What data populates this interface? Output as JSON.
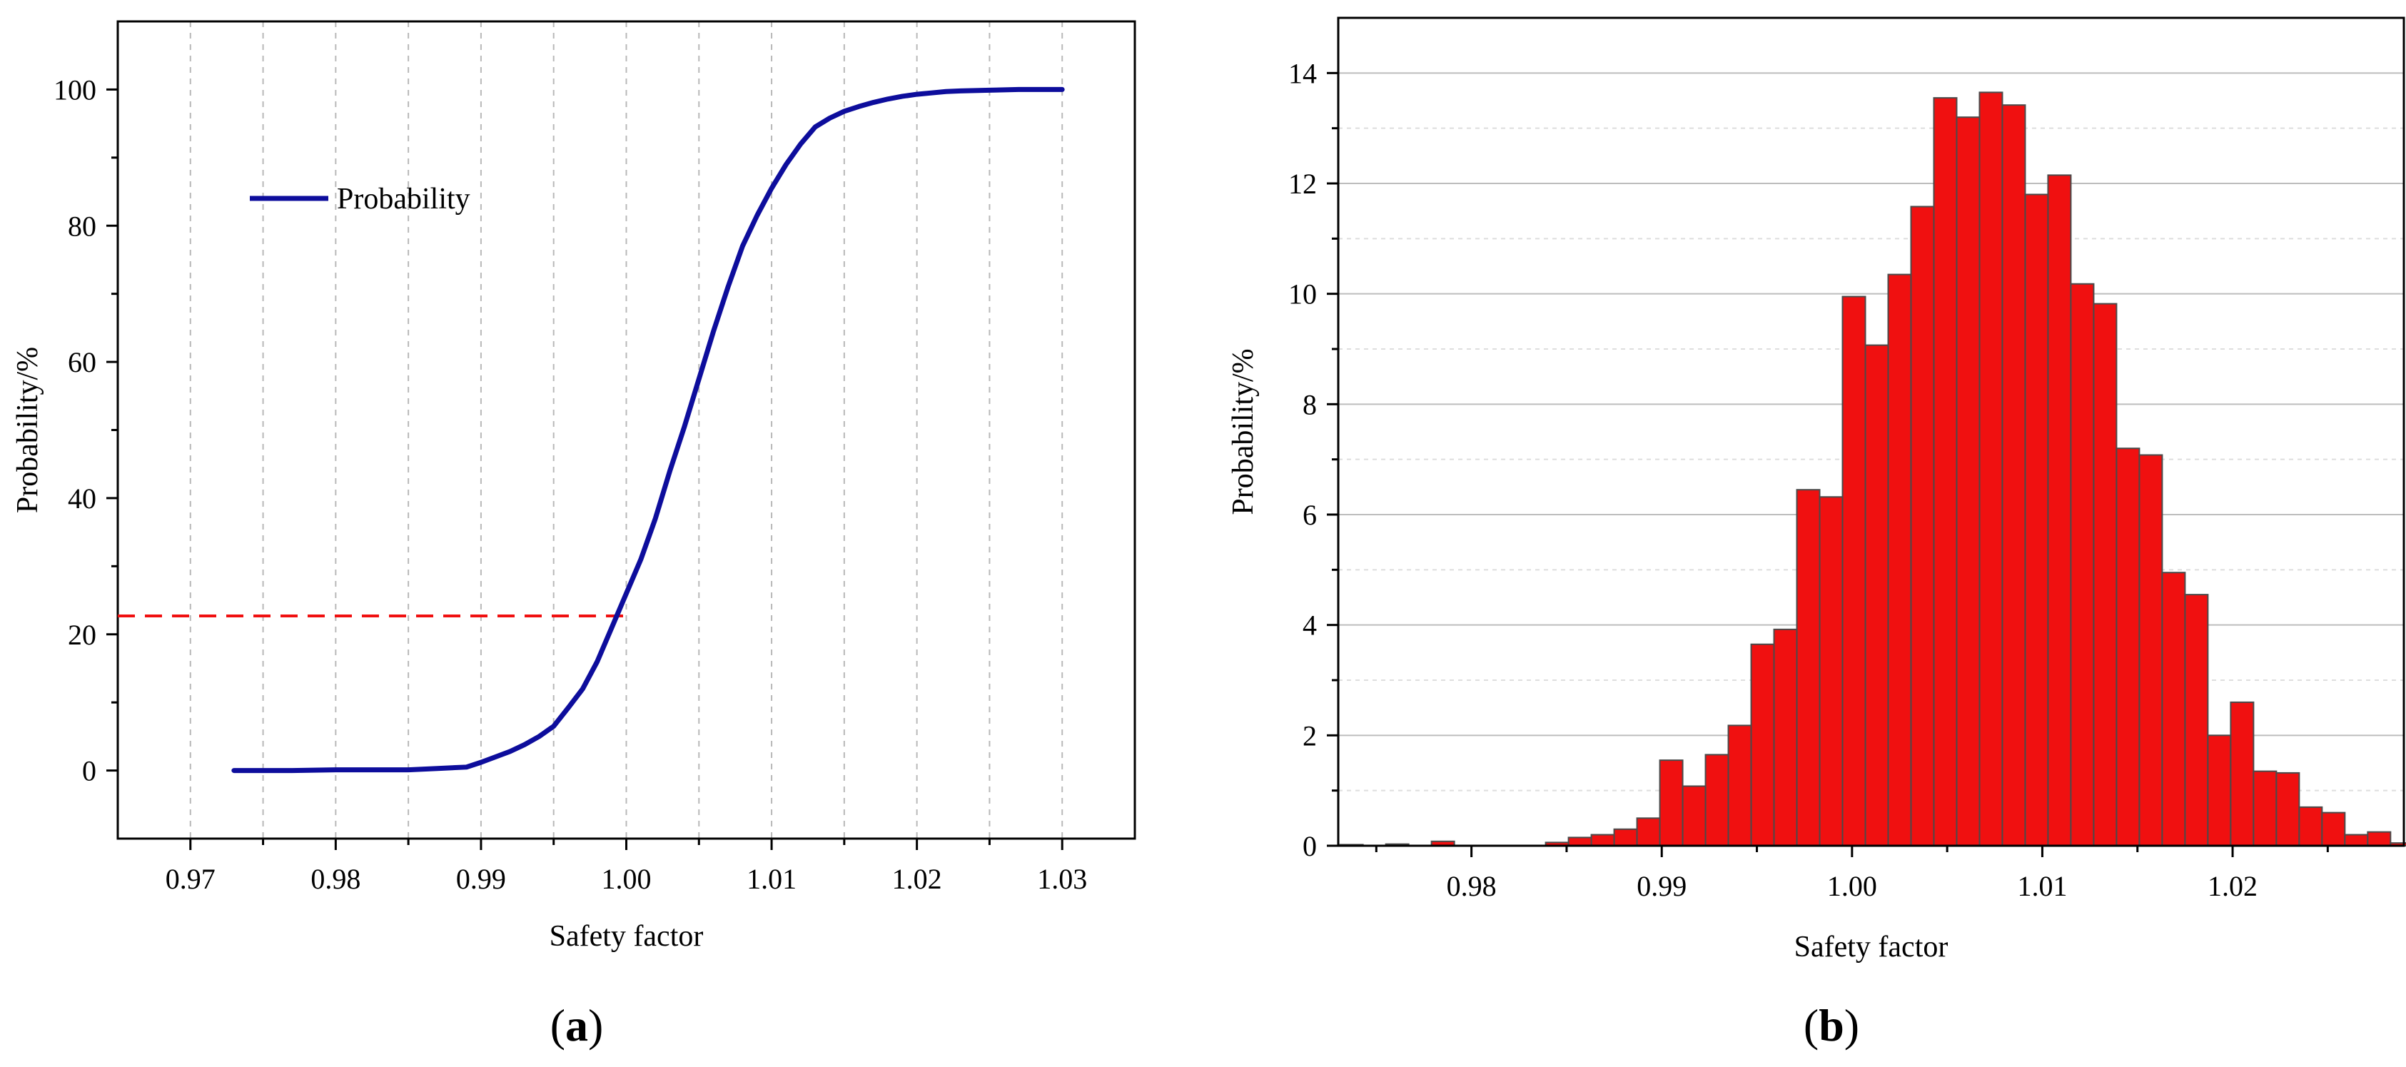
{
  "panels": [
    {
      "label_open": "(",
      "label_letter": "a",
      "label_close": ")"
    },
    {
      "label_open": "(",
      "label_letter": "b",
      "label_close": ")"
    }
  ],
  "colors": {
    "line": "#0d0d9c",
    "bar": "#f01010",
    "refline": "#f01010",
    "axis": "#000000",
    "grid": "#b8b8b8"
  },
  "chart_data": [
    {
      "type": "line",
      "xlabel": "Safety factor",
      "ylabel": "Probability/%",
      "xlim": [
        0.965,
        1.035
      ],
      "ylim": [
        -10,
        110
      ],
      "xticks": [
        0.97,
        0.98,
        0.99,
        1.0,
        1.01,
        1.02,
        1.03
      ],
      "xtick_labels": [
        "0.97",
        "0.98",
        "0.99",
        "1.00",
        "1.01",
        "1.02",
        "1.03"
      ],
      "yticks": [
        0,
        20,
        40,
        60,
        80,
        100
      ],
      "ytick_labels": [
        "0",
        "20",
        "40",
        "60",
        "80",
        "100"
      ],
      "grid": "vertical dashed",
      "legend": {
        "position": "upper-left",
        "entries": [
          "Probability"
        ]
      },
      "series": [
        {
          "name": "Probability",
          "x": [
            0.973,
            0.975,
            0.977,
            0.98,
            0.983,
            0.985,
            0.987,
            0.989,
            0.99,
            0.991,
            0.992,
            0.993,
            0.994,
            0.995,
            0.996,
            0.997,
            0.998,
            0.999,
            1.0,
            1.001,
            1.002,
            1.003,
            1.004,
            1.005,
            1.006,
            1.007,
            1.008,
            1.009,
            1.01,
            1.011,
            1.012,
            1.013,
            1.014,
            1.015,
            1.016,
            1.017,
            1.018,
            1.019,
            1.02,
            1.021,
            1.022,
            1.023,
            1.025,
            1.027,
            1.03
          ],
          "y": [
            0,
            0,
            0,
            0.1,
            0.1,
            0.1,
            0.3,
            0.5,
            1.2,
            2.0,
            2.8,
            3.8,
            5.0,
            6.5,
            9.2,
            12.0,
            16.0,
            21.0,
            26.0,
            31.0,
            37.0,
            44.0,
            50.5,
            57.5,
            64.5,
            71.0,
            77.0,
            81.5,
            85.5,
            89.0,
            92.0,
            94.5,
            95.8,
            96.8,
            97.5,
            98.1,
            98.6,
            99.0,
            99.3,
            99.5,
            99.7,
            99.8,
            99.9,
            100,
            100
          ]
        }
      ],
      "annotations": [
        {
          "type": "reference-line",
          "style": "red dashed",
          "y": 22.7,
          "x_end": 1.0
        }
      ]
    },
    {
      "type": "bar",
      "xlabel": "Safety factor",
      "ylabel": "Probability/%",
      "xlim": [
        0.973,
        1.029
      ],
      "ylim": [
        0,
        15
      ],
      "xticks": [
        0.98,
        0.99,
        1.0,
        1.01,
        1.02
      ],
      "xtick_labels": [
        "0.98",
        "0.99",
        "1.00",
        "1.01",
        "1.02"
      ],
      "yticks": [
        0,
        2,
        4,
        6,
        8,
        10,
        12,
        14
      ],
      "ytick_labels": [
        "0",
        "2",
        "4",
        "6",
        "8",
        "10",
        "12",
        "14"
      ],
      "grid": "horizontal",
      "bin_width": 0.0012,
      "bin_start": 0.9731,
      "values": [
        0.02,
        0.0,
        0.03,
        0.0,
        0.08,
        0.0,
        0.0,
        0.0,
        0.0,
        0.06,
        0.15,
        0.2,
        0.3,
        0.5,
        1.55,
        1.08,
        1.65,
        2.18,
        3.65,
        3.92,
        6.45,
        6.32,
        9.95,
        9.07,
        10.35,
        11.58,
        13.55,
        13.2,
        13.65,
        13.42,
        11.8,
        12.15,
        10.18,
        9.82,
        7.2,
        7.08,
        4.95,
        4.55,
        2.0,
        2.6,
        1.35,
        1.32,
        0.7,
        0.6,
        0.2,
        0.25,
        0.05,
        0.1,
        0.1
      ]
    }
  ]
}
